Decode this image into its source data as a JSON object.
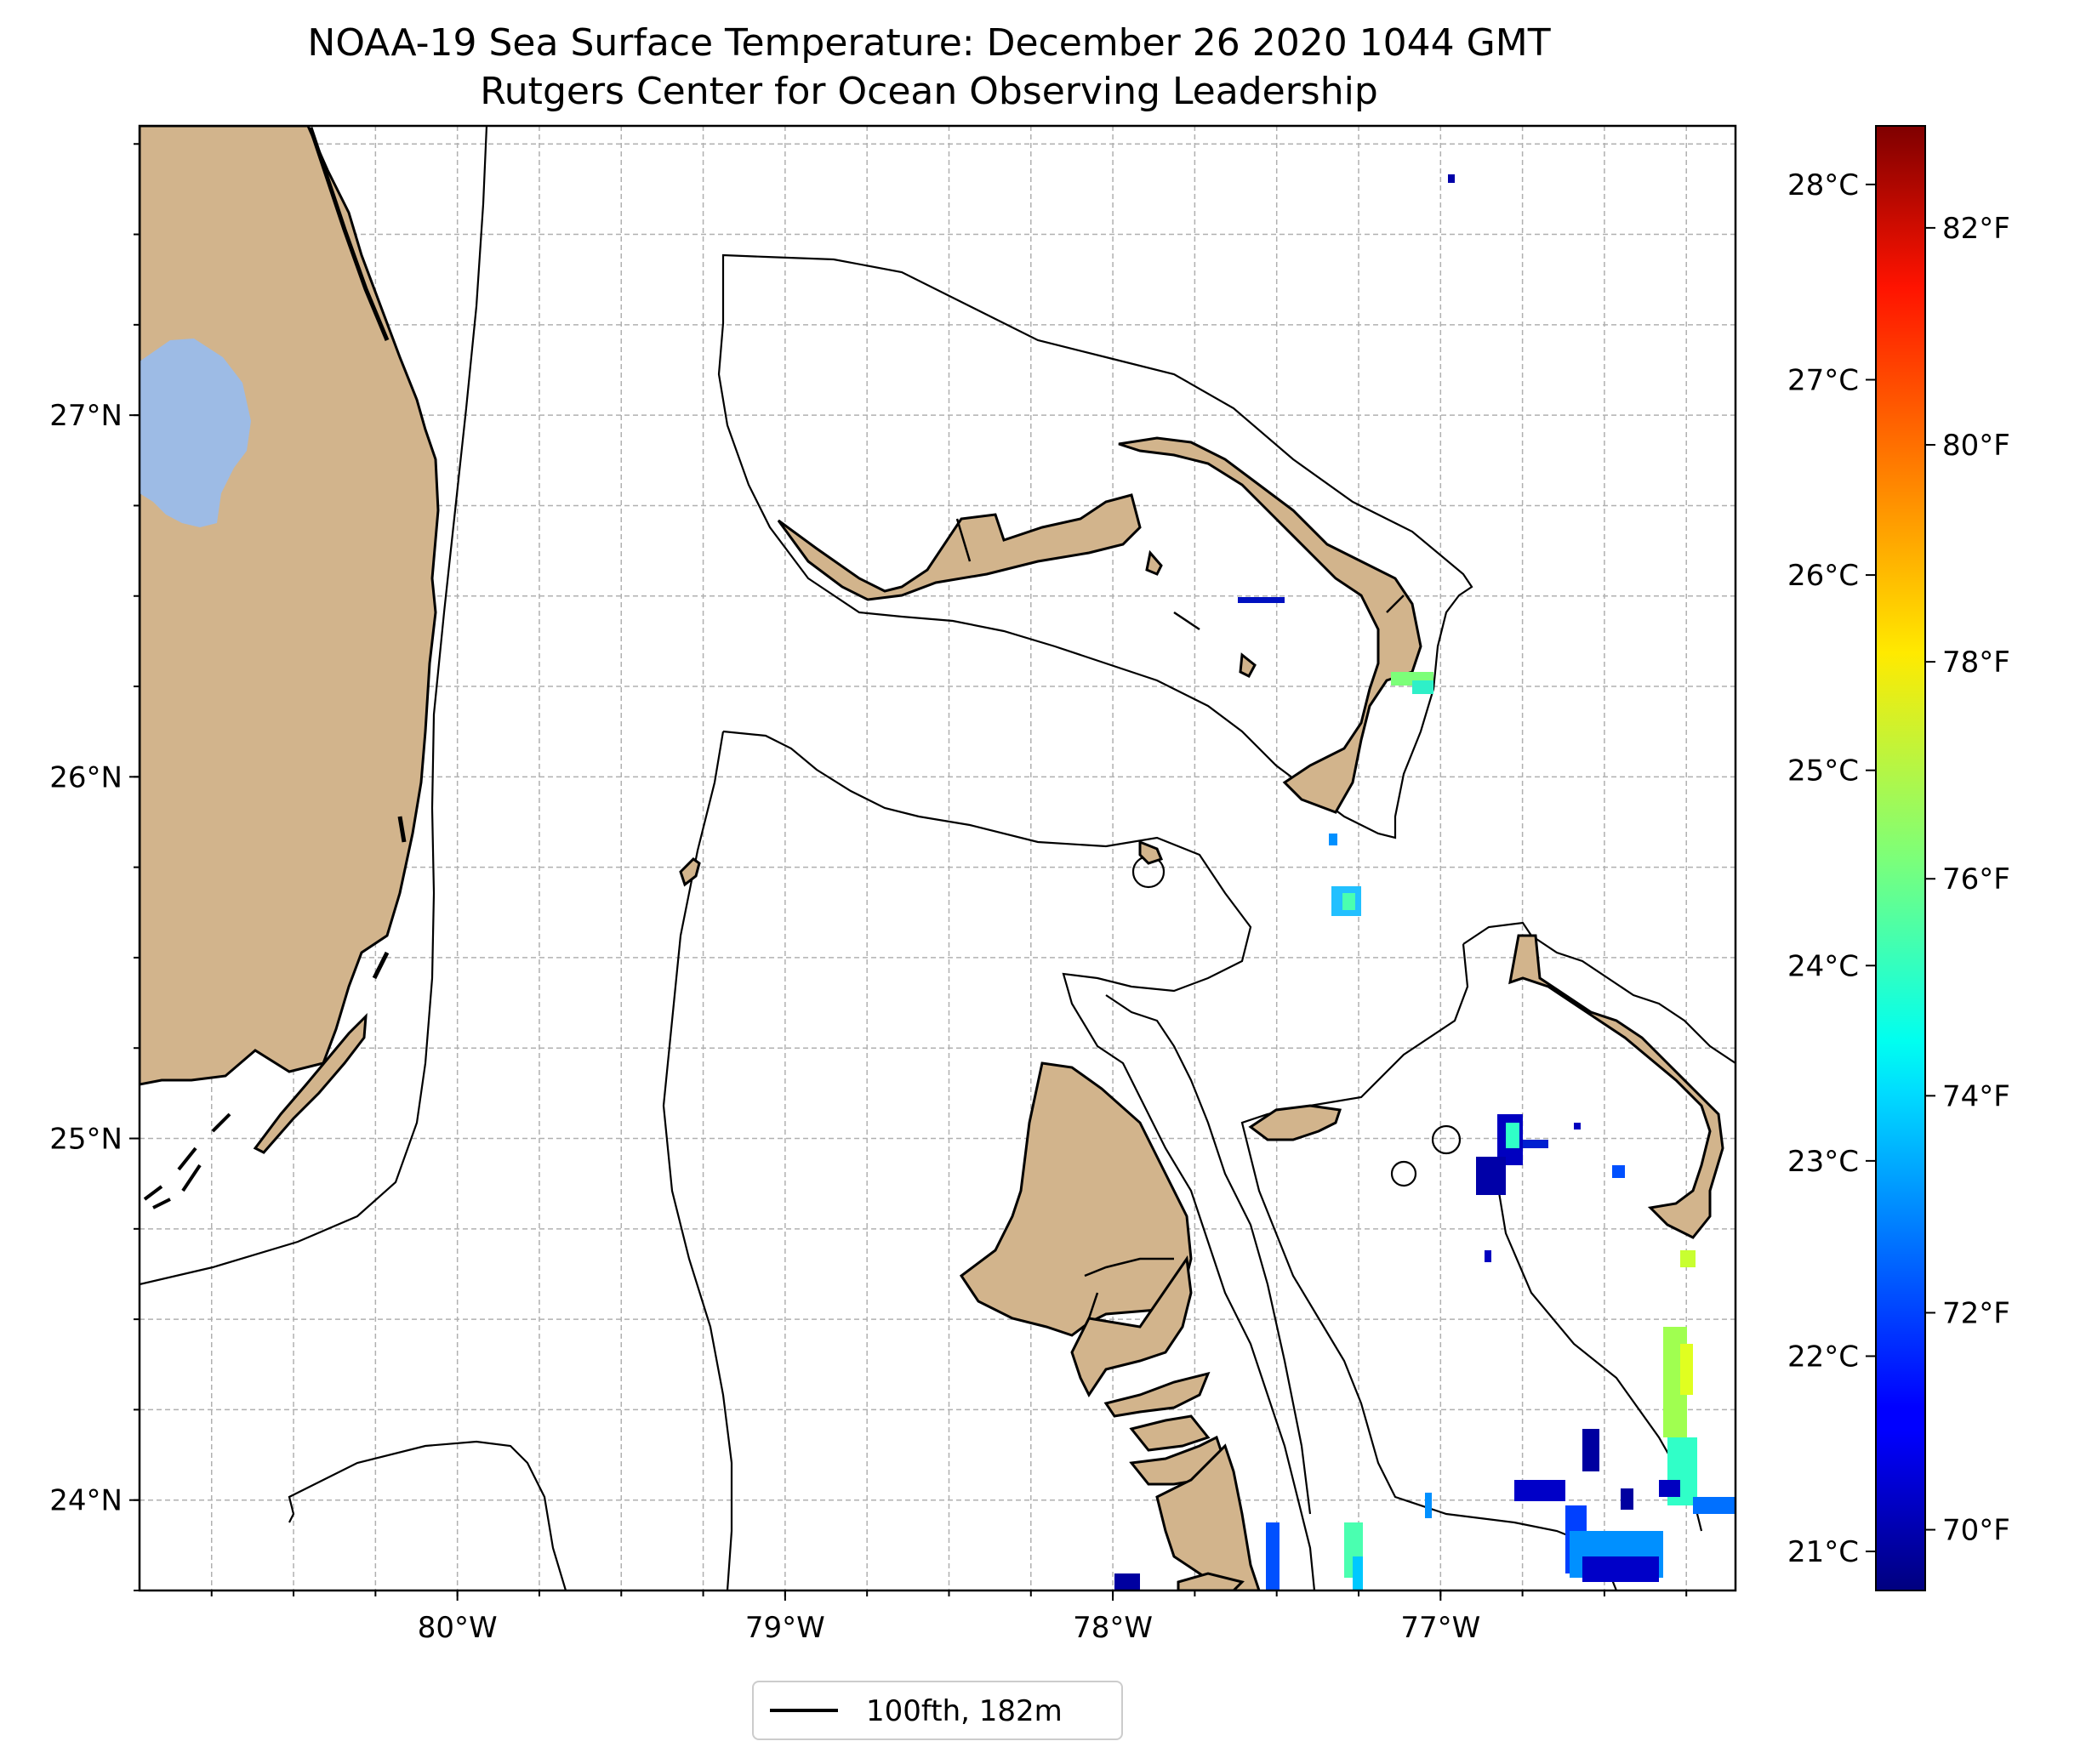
{
  "title": {
    "line1": "NOAA-19 Sea Surface Temperature: December 26 2020 1044 GMT",
    "line2": "Rutgers Center for Ocean Observing Leadership"
  },
  "map": {
    "type": "map",
    "lon_range": [
      -80.97,
      -76.1
    ],
    "lat_range": [
      23.75,
      27.8
    ],
    "x_ticks": [
      {
        "value": -80,
        "label": "80°W"
      },
      {
        "value": -79,
        "label": "79°W"
      },
      {
        "value": -78,
        "label": "78°W"
      },
      {
        "value": -77,
        "label": "77°W"
      }
    ],
    "y_ticks": [
      {
        "value": 27,
        "label": "27°N"
      },
      {
        "value": 26,
        "label": "26°N"
      },
      {
        "value": 25,
        "label": "25°N"
      },
      {
        "value": 24,
        "label": "24°N"
      }
    ],
    "gridlines": true,
    "land_color": "#D2B48C",
    "lake_color": "#9DBBE5",
    "contour_color": "#000000"
  },
  "legend": {
    "entries": [
      {
        "label": "100fth, 182m",
        "color": "#000000"
      }
    ],
    "placement": "bottom-center"
  },
  "colorbar": {
    "colormap": "jet",
    "celsius_range": [
      20.8,
      28.3
    ],
    "celsius_ticks": [
      {
        "value": 21,
        "label": "21°C"
      },
      {
        "value": 22,
        "label": "22°C"
      },
      {
        "value": 23,
        "label": "23°C"
      },
      {
        "value": 24,
        "label": "24°C"
      },
      {
        "value": 25,
        "label": "25°C"
      },
      {
        "value": 26,
        "label": "26°C"
      },
      {
        "value": 27,
        "label": "27°C"
      },
      {
        "value": 28,
        "label": "28°C"
      }
    ],
    "fahrenheit_ticks": [
      {
        "value": 70,
        "label": "70°F"
      },
      {
        "value": 72,
        "label": "72°F"
      },
      {
        "value": 74,
        "label": "74°F"
      },
      {
        "value": 76,
        "label": "76°F"
      },
      {
        "value": 78,
        "label": "78°F"
      },
      {
        "value": 80,
        "label": "80°F"
      },
      {
        "value": 82,
        "label": "82°F"
      }
    ]
  }
}
